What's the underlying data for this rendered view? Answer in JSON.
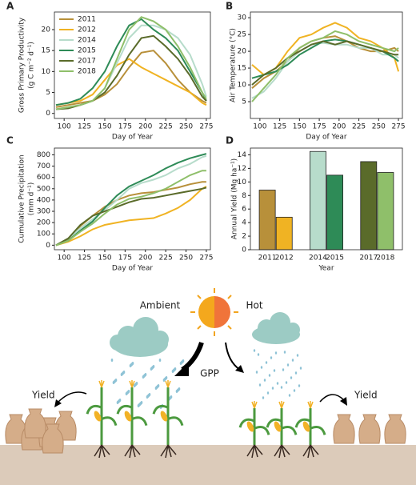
{
  "chart_data": [
    {
      "type": "line",
      "label": "A",
      "xlabel": "Day of Year",
      "ylabel": [
        "Gross Primary Productivity",
        "(g C m⁻² d⁻¹)"
      ],
      "x": [
        90,
        105,
        120,
        135,
        150,
        165,
        180,
        195,
        210,
        225,
        240,
        255,
        270,
        275
      ],
      "xlim": [
        88,
        280
      ],
      "xticks": [
        100,
        125,
        150,
        175,
        200,
        225,
        250,
        275
      ],
      "ylim": [
        -1.2,
        24.2
      ],
      "yticks": [
        0,
        5,
        10,
        15,
        20
      ],
      "legend": "upper left",
      "series": [
        {
          "name": "2011",
          "color": "#b8903a",
          "values": [
            1.5,
            2,
            2.5,
            3,
            4.5,
            7,
            11,
            14.5,
            15,
            12,
            8,
            5,
            3,
            2.5
          ]
        },
        {
          "name": "2012",
          "color": "#f0b323",
          "values": [
            2,
            2.5,
            3,
            4.5,
            8,
            11.5,
            13,
            11,
            9.5,
            8,
            6.5,
            5,
            2.5,
            2
          ]
        },
        {
          "name": "2014",
          "color": "#b7dccb",
          "values": [
            1,
            1.5,
            2,
            3,
            6,
            12,
            18,
            21,
            21,
            20,
            18,
            14,
            7,
            4
          ]
        },
        {
          "name": "2015",
          "color": "#2e8b57",
          "values": [
            2,
            2.5,
            3.5,
            6,
            10,
            16,
            21,
            22.5,
            20,
            18,
            15,
            10,
            5,
            3
          ]
        },
        {
          "name": "2017",
          "color": "#5a6b2a",
          "values": [
            1,
            1.2,
            2,
            3,
            5,
            9,
            14,
            18,
            18.5,
            16,
            13,
            9,
            4,
            3
          ]
        },
        {
          "name": "2018",
          "color": "#8fbf6a",
          "values": [
            1,
            1.5,
            2,
            3,
            6,
            13,
            20,
            23,
            22,
            20,
            16,
            11,
            5,
            3.5
          ]
        }
      ]
    },
    {
      "type": "line",
      "label": "B",
      "xlabel": "Day of Year",
      "ylabel": [
        "Air Temperature (°C)"
      ],
      "x": [
        90,
        105,
        120,
        135,
        150,
        165,
        180,
        195,
        210,
        225,
        240,
        255,
        270,
        275
      ],
      "xlim": [
        88,
        280
      ],
      "xticks": [
        100,
        125,
        150,
        175,
        200,
        225,
        250,
        275
      ],
      "ylim": [
        0,
        31.7
      ],
      "yticks": [
        5,
        10,
        15,
        20,
        25,
        30
      ],
      "series": [
        {
          "color": "#b8903a",
          "values": [
            9,
            12,
            14,
            17,
            21,
            23,
            24,
            24.5,
            23,
            21,
            20,
            20,
            21,
            20
          ]
        },
        {
          "color": "#f0b323",
          "values": [
            16,
            13,
            15,
            20,
            24,
            25,
            27,
            28.5,
            27,
            24,
            23,
            21,
            18,
            14
          ]
        },
        {
          "color": "#b7dccb",
          "values": [
            6,
            8,
            12,
            17,
            20,
            22,
            22.5,
            22,
            22,
            21,
            21,
            19,
            19,
            18
          ]
        },
        {
          "color": "#2e8b57",
          "values": [
            12,
            13,
            14,
            16,
            19,
            21,
            23,
            23.5,
            23,
            22,
            21,
            20,
            18,
            17
          ]
        },
        {
          "color": "#5a6b2a",
          "values": [
            10,
            13,
            15,
            18,
            20,
            22,
            23,
            22,
            23,
            22,
            21,
            20,
            19,
            19
          ]
        },
        {
          "color": "#8fbf6a",
          "values": [
            5,
            9,
            13,
            18,
            21,
            23,
            24,
            26,
            25,
            23,
            22,
            21,
            20,
            21
          ]
        }
      ]
    },
    {
      "type": "line",
      "label": "C",
      "xlabel": "Day of Year",
      "ylabel": [
        "Cumulative Precipitation",
        "(mm d⁻¹)"
      ],
      "x": [
        90,
        105,
        120,
        135,
        150,
        165,
        180,
        195,
        210,
        225,
        240,
        255,
        270,
        275
      ],
      "xlim": [
        88,
        280
      ],
      "xticks": [
        100,
        125,
        150,
        175,
        200,
        225,
        250,
        275
      ],
      "ylim": [
        -40,
        860
      ],
      "yticks": [
        0,
        100,
        200,
        300,
        400,
        500,
        600,
        700,
        800
      ],
      "series": [
        {
          "color": "#b8903a",
          "values": [
            0,
            50,
            170,
            260,
            340,
            400,
            440,
            460,
            470,
            490,
            510,
            540,
            560,
            560
          ]
        },
        {
          "color": "#f0b323",
          "values": [
            0,
            30,
            80,
            140,
            180,
            200,
            220,
            230,
            240,
            280,
            330,
            400,
            500,
            520
          ]
        },
        {
          "color": "#b7dccb",
          "values": [
            0,
            60,
            150,
            230,
            310,
            400,
            500,
            550,
            580,
            620,
            680,
            720,
            780,
            790
          ]
        },
        {
          "color": "#2e8b57",
          "values": [
            0,
            40,
            130,
            210,
            330,
            440,
            520,
            570,
            620,
            680,
            730,
            770,
            800,
            810
          ]
        },
        {
          "color": "#5a6b2a",
          "values": [
            0,
            60,
            180,
            260,
            300,
            340,
            380,
            410,
            420,
            440,
            460,
            480,
            500,
            510
          ]
        },
        {
          "color": "#8fbf6a",
          "values": [
            0,
            40,
            120,
            190,
            280,
            360,
            410,
            430,
            460,
            500,
            560,
            620,
            660,
            660
          ]
        }
      ]
    },
    {
      "type": "bar",
      "label": "D",
      "xlabel": "Year",
      "ylabel": [
        "Annual Yield (Mg ha⁻¹)"
      ],
      "categories": [
        "2011",
        "2012",
        "2014",
        "2015",
        "2017",
        "2018"
      ],
      "values": [
        8.8,
        4.8,
        14.5,
        11,
        13,
        11.4
      ],
      "colors": [
        "#b8903a",
        "#f0b323",
        "#b7dccb",
        "#2e8b57",
        "#5a6b2a",
        "#8fbf6a"
      ],
      "ylim": [
        0,
        15
      ],
      "yticks": [
        0,
        2,
        4,
        6,
        8,
        10,
        12,
        14
      ]
    }
  ],
  "diagram": {
    "ambient": "Ambient",
    "hot": "Hot",
    "gpp": "GPP",
    "yield_left": "Yield",
    "yield_right": "Yield"
  }
}
